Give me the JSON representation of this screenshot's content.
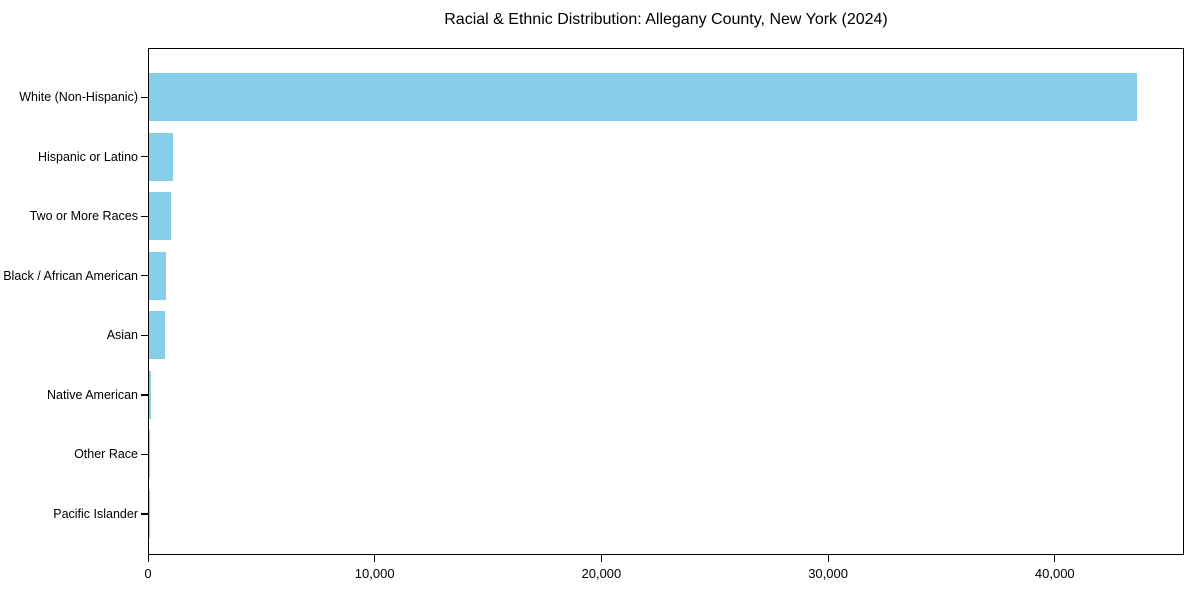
{
  "figure": {
    "background": "#ffffff"
  },
  "chart_data": {
    "type": "bar",
    "orientation": "horizontal",
    "title": "Racial & Ethnic Distribution: Allegany County, New York (2024)",
    "categories": [
      "White (Non-Hispanic)",
      "Hispanic or Latino",
      "Two or More Races",
      "Black / African American",
      "Asian",
      "Native American",
      "Other Race",
      "Pacific Islander"
    ],
    "values": [
      43600,
      1050,
      970,
      770,
      690,
      90,
      50,
      15
    ],
    "xlabel": "",
    "ylabel": "",
    "xlim": [
      0,
      45700
    ],
    "xticks": {
      "values": [
        0,
        10000,
        20000,
        30000,
        40000
      ],
      "labels": [
        "0",
        "10,000",
        "20,000",
        "30,000",
        "40,000"
      ]
    },
    "grid": false,
    "legend": false,
    "bar_color": "#87CEEB",
    "spine_color": "#000000",
    "text_color": "#000000"
  }
}
